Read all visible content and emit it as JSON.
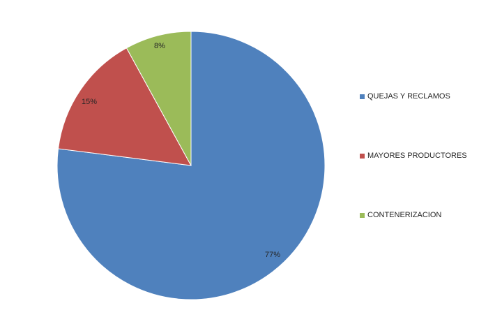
{
  "chart_data": {
    "type": "pie",
    "title": "",
    "start_angle_deg": 0,
    "direction": "clockwise",
    "legend_position": "right",
    "series": [
      {
        "slices": [
          {
            "label": "QUEJAS Y RECLAMOS",
            "value": 77,
            "display": "77%",
            "color": "#4F81BD"
          },
          {
            "label": "MAYORES PRODUCTORES",
            "value": 15,
            "display": "15%",
            "color": "#C0504D"
          },
          {
            "label": "CONTENERIZACION",
            "value": 8,
            "display": "8%",
            "color": "#9BBB59"
          }
        ]
      }
    ]
  }
}
